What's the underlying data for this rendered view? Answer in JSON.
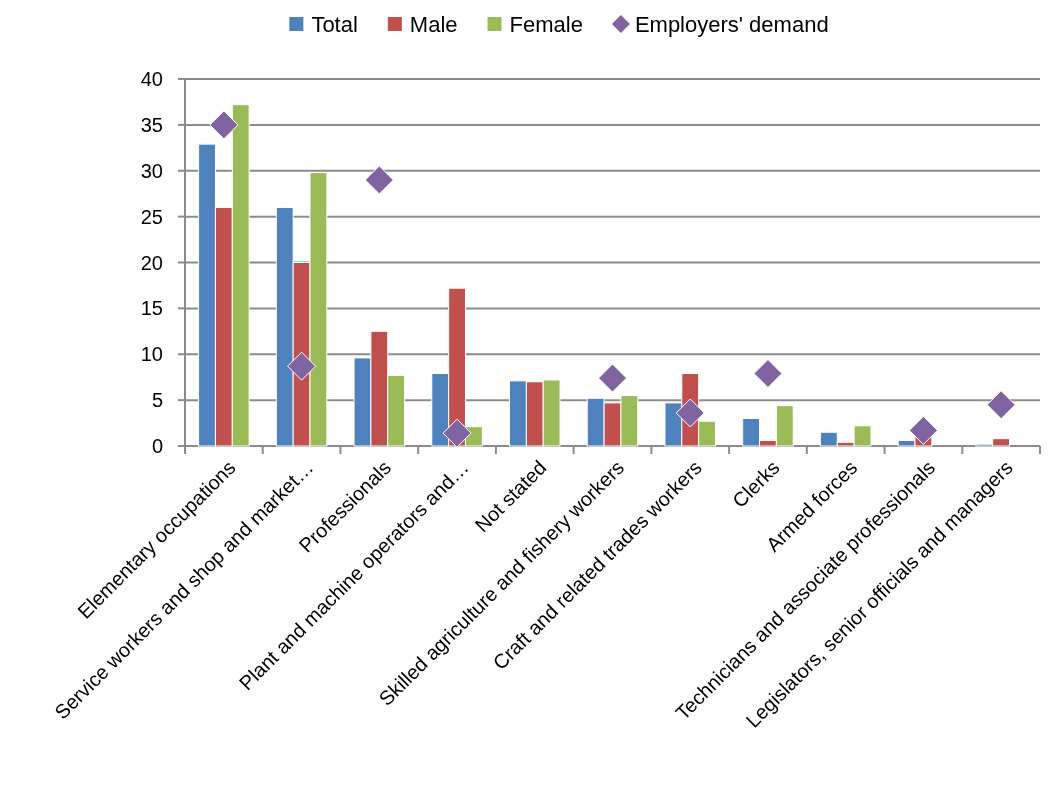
{
  "chart_data": {
    "type": "bar",
    "categories": [
      "Elementary occupations",
      "Service workers and shop and market…",
      "Professionals",
      "Plant and machine operators and…",
      "Not stated",
      "Skilled agriculture and fishery workers",
      "Craft and related trades workers",
      "Clerks",
      "Armed forces",
      "Technicians and associate professionals",
      "Legislators, senior officials and managers"
    ],
    "series": [
      {
        "name": "Total",
        "color": "#4f81bd",
        "values": [
          32.9,
          26.0,
          9.6,
          7.9,
          7.1,
          5.2,
          4.7,
          3.0,
          1.5,
          0.6,
          0.2
        ]
      },
      {
        "name": "Male",
        "color": "#c0504d",
        "values": [
          26.0,
          20.0,
          12.5,
          17.2,
          7.0,
          4.7,
          7.9,
          0.6,
          0.4,
          1.2,
          0.8
        ]
      },
      {
        "name": "Female",
        "color": "#9bbb59",
        "values": [
          37.2,
          29.8,
          7.7,
          2.1,
          7.2,
          5.5,
          2.7,
          4.4,
          2.2,
          null,
          null
        ]
      },
      {
        "name": "Employers' demand",
        "type": "scatter",
        "marker": "diamond",
        "color": "#8064a2",
        "values": [
          35.0,
          8.7,
          29.0,
          1.4,
          null,
          7.4,
          3.6,
          7.9,
          null,
          1.7,
          4.5
        ]
      }
    ],
    "ylim": [
      0,
      40
    ],
    "yticks": [
      0,
      5,
      10,
      15,
      20,
      25,
      30,
      35,
      40
    ],
    "grid": "y",
    "legend": "top"
  }
}
